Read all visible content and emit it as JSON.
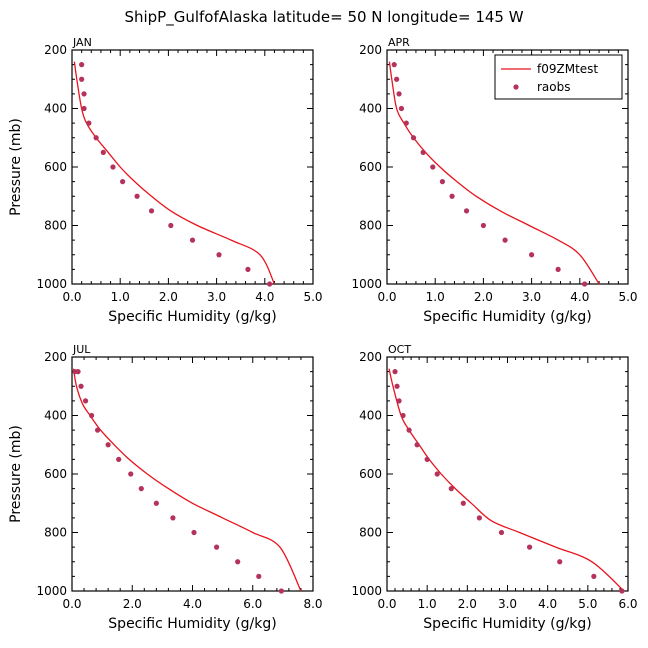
{
  "title": "ShipP_GulfofAlaska  latitude= 50 N longitude= 145 W",
  "legend": {
    "model_name": "f09ZMtest",
    "obs_name": "raobs"
  },
  "colors": {
    "model_line": "#e8141e",
    "obs_marker": "#b5325a"
  },
  "chart_data": [
    {
      "type": "line",
      "panel": "JAN",
      "xlabel": "Specific Humidity (g/kg)",
      "ylabel": "Pressure (mb)",
      "xlim": [
        0,
        5
      ],
      "xticks": [
        "0.0",
        "1.0",
        "2.0",
        "3.0",
        "4.0",
        "5.0"
      ],
      "ylim": [
        200,
        1000
      ],
      "yticks": [
        "200",
        "400",
        "600",
        "800",
        "1000"
      ],
      "y_inverted": true,
      "series": [
        {
          "name": "f09ZMtest",
          "style": "line",
          "x": [
            0.05,
            0.1,
            0.2,
            0.3,
            0.5,
            0.75,
            1.0,
            1.3,
            1.65,
            2.05,
            2.6,
            3.3,
            3.9,
            4.2
          ],
          "y": [
            240,
            300,
            400,
            450,
            500,
            550,
            600,
            650,
            700,
            750,
            800,
            850,
            900,
            1000
          ]
        },
        {
          "name": "raobs",
          "style": "points",
          "x": [
            0.2,
            0.2,
            0.25,
            0.25,
            0.35,
            0.5,
            0.65,
            0.85,
            1.05,
            1.35,
            1.65,
            2.05,
            2.5,
            3.05,
            3.65,
            4.1
          ],
          "y": [
            250,
            300,
            350,
            400,
            450,
            500,
            550,
            600,
            650,
            700,
            750,
            800,
            850,
            900,
            950,
            1000
          ]
        }
      ]
    },
    {
      "type": "line",
      "panel": "APR",
      "xlabel": "Specific Humidity (g/kg)",
      "ylabel": "",
      "xlim": [
        0,
        5
      ],
      "xticks": [
        "0.0",
        "1.0",
        "2.0",
        "3.0",
        "4.0",
        "5.0"
      ],
      "ylim": [
        200,
        1000
      ],
      "yticks": [
        "200",
        "400",
        "600",
        "800",
        "1000"
      ],
      "y_inverted": true,
      "series": [
        {
          "name": "f09ZMtest",
          "style": "line",
          "x": [
            0.05,
            0.1,
            0.2,
            0.35,
            0.55,
            0.8,
            1.1,
            1.45,
            1.85,
            2.35,
            2.95,
            3.55,
            4.0,
            4.4
          ],
          "y": [
            240,
            300,
            400,
            450,
            500,
            550,
            600,
            650,
            700,
            750,
            800,
            850,
            900,
            1000
          ]
        },
        {
          "name": "raobs",
          "style": "points",
          "x": [
            0.15,
            0.2,
            0.25,
            0.3,
            0.4,
            0.55,
            0.75,
            0.95,
            1.15,
            1.35,
            1.65,
            2.0,
            2.45,
            3.0,
            3.55,
            4.1
          ],
          "y": [
            250,
            300,
            350,
            400,
            450,
            500,
            550,
            600,
            650,
            700,
            750,
            800,
            850,
            900,
            950,
            1000
          ]
        }
      ]
    },
    {
      "type": "line",
      "panel": "JUL",
      "xlabel": "Specific Humidity (g/kg)",
      "ylabel": "Pressure (mb)",
      "xlim": [
        0,
        8
      ],
      "xticks": [
        "0.0",
        "2.0",
        "4.0",
        "6.0",
        "8.0"
      ],
      "ylim": [
        200,
        1000
      ],
      "yticks": [
        "200",
        "400",
        "600",
        "800",
        "1000"
      ],
      "y_inverted": true,
      "series": [
        {
          "name": "f09ZMtest",
          "style": "line",
          "x": [
            0.05,
            0.15,
            0.35,
            0.6,
            0.95,
            1.4,
            1.9,
            2.5,
            3.2,
            4.0,
            5.0,
            6.0,
            6.9,
            7.6
          ],
          "y": [
            240,
            300,
            360,
            400,
            450,
            500,
            550,
            600,
            650,
            700,
            750,
            800,
            850,
            1000
          ]
        },
        {
          "name": "raobs",
          "style": "points",
          "x": [
            0.1,
            0.2,
            0.3,
            0.45,
            0.65,
            0.85,
            1.2,
            1.55,
            1.95,
            2.3,
            2.8,
            3.35,
            4.05,
            4.8,
            5.5,
            6.2,
            6.95
          ],
          "y": [
            250,
            250,
            300,
            350,
            400,
            450,
            500,
            550,
            600,
            650,
            700,
            750,
            800,
            850,
            900,
            950,
            1000
          ]
        }
      ]
    },
    {
      "type": "line",
      "panel": "OCT",
      "xlabel": "Specific Humidity (g/kg)",
      "ylabel": "",
      "xlim": [
        0,
        6
      ],
      "xticks": [
        "0.0",
        "1.0",
        "2.0",
        "3.0",
        "4.0",
        "5.0",
        "6.0"
      ],
      "ylim": [
        200,
        1000
      ],
      "yticks": [
        "200",
        "400",
        "600",
        "800",
        "1000"
      ],
      "y_inverted": true,
      "series": [
        {
          "name": "f09ZMtest",
          "style": "line",
          "x": [
            0.05,
            0.15,
            0.35,
            0.55,
            0.8,
            1.05,
            1.35,
            1.7,
            2.1,
            2.6,
            3.3,
            4.2,
            5.1,
            5.9
          ],
          "y": [
            240,
            300,
            400,
            450,
            500,
            550,
            600,
            650,
            700,
            760,
            800,
            850,
            900,
            1000
          ]
        },
        {
          "name": "raobs",
          "style": "points",
          "x": [
            0.2,
            0.25,
            0.3,
            0.4,
            0.55,
            0.75,
            1.0,
            1.25,
            1.6,
            1.9,
            2.3,
            2.85,
            3.55,
            4.3,
            5.15,
            5.85
          ],
          "y": [
            250,
            300,
            350,
            400,
            450,
            500,
            550,
            600,
            650,
            700,
            750,
            800,
            850,
            900,
            950,
            1000
          ]
        }
      ]
    }
  ]
}
